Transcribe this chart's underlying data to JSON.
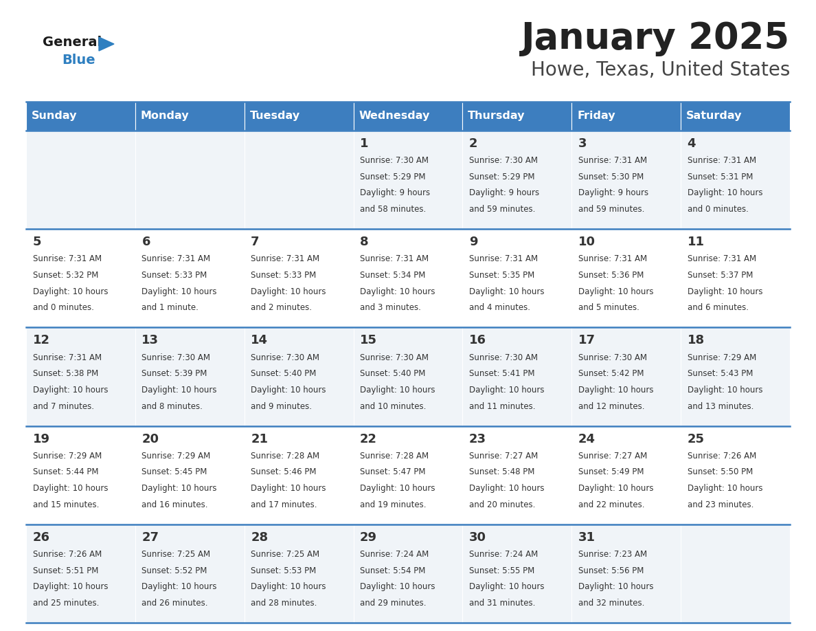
{
  "title": "January 2025",
  "subtitle": "Howe, Texas, United States",
  "header_color": "#3d7ebf",
  "header_text_color": "#ffffff",
  "cell_bg_color": "#f0f4f8",
  "cell_alt_bg_color": "#ffffff",
  "border_color": "#3d7ebf",
  "day_headers": [
    "Sunday",
    "Monday",
    "Tuesday",
    "Wednesday",
    "Thursday",
    "Friday",
    "Saturday"
  ],
  "title_color": "#222222",
  "subtitle_color": "#444444",
  "day_number_color": "#333333",
  "cell_text_color": "#333333",
  "logo_general_color": "#1a1a1a",
  "logo_blue_color": "#2e7fc0",
  "weeks": [
    [
      {
        "day": "",
        "sunrise": "",
        "sunset": "",
        "daylight_hours": "",
        "daylight_mins": ""
      },
      {
        "day": "",
        "sunrise": "",
        "sunset": "",
        "daylight_hours": "",
        "daylight_mins": ""
      },
      {
        "day": "",
        "sunrise": "",
        "sunset": "",
        "daylight_hours": "",
        "daylight_mins": ""
      },
      {
        "day": "1",
        "sunrise": "7:30 AM",
        "sunset": "5:29 PM",
        "daylight_hours": "9",
        "daylight_mins": "58 minutes."
      },
      {
        "day": "2",
        "sunrise": "7:30 AM",
        "sunset": "5:29 PM",
        "daylight_hours": "9",
        "daylight_mins": "59 minutes."
      },
      {
        "day": "3",
        "sunrise": "7:31 AM",
        "sunset": "5:30 PM",
        "daylight_hours": "9",
        "daylight_mins": "59 minutes."
      },
      {
        "day": "4",
        "sunrise": "7:31 AM",
        "sunset": "5:31 PM",
        "daylight_hours": "10",
        "daylight_mins": "0 minutes."
      }
    ],
    [
      {
        "day": "5",
        "sunrise": "7:31 AM",
        "sunset": "5:32 PM",
        "daylight_hours": "10",
        "daylight_mins": "0 minutes."
      },
      {
        "day": "6",
        "sunrise": "7:31 AM",
        "sunset": "5:33 PM",
        "daylight_hours": "10",
        "daylight_mins": "1 minute."
      },
      {
        "day": "7",
        "sunrise": "7:31 AM",
        "sunset": "5:33 PM",
        "daylight_hours": "10",
        "daylight_mins": "2 minutes."
      },
      {
        "day": "8",
        "sunrise": "7:31 AM",
        "sunset": "5:34 PM",
        "daylight_hours": "10",
        "daylight_mins": "3 minutes."
      },
      {
        "day": "9",
        "sunrise": "7:31 AM",
        "sunset": "5:35 PM",
        "daylight_hours": "10",
        "daylight_mins": "4 minutes."
      },
      {
        "day": "10",
        "sunrise": "7:31 AM",
        "sunset": "5:36 PM",
        "daylight_hours": "10",
        "daylight_mins": "5 minutes."
      },
      {
        "day": "11",
        "sunrise": "7:31 AM",
        "sunset": "5:37 PM",
        "daylight_hours": "10",
        "daylight_mins": "6 minutes."
      }
    ],
    [
      {
        "day": "12",
        "sunrise": "7:31 AM",
        "sunset": "5:38 PM",
        "daylight_hours": "10",
        "daylight_mins": "7 minutes."
      },
      {
        "day": "13",
        "sunrise": "7:30 AM",
        "sunset": "5:39 PM",
        "daylight_hours": "10",
        "daylight_mins": "8 minutes."
      },
      {
        "day": "14",
        "sunrise": "7:30 AM",
        "sunset": "5:40 PM",
        "daylight_hours": "10",
        "daylight_mins": "9 minutes."
      },
      {
        "day": "15",
        "sunrise": "7:30 AM",
        "sunset": "5:40 PM",
        "daylight_hours": "10",
        "daylight_mins": "10 minutes."
      },
      {
        "day": "16",
        "sunrise": "7:30 AM",
        "sunset": "5:41 PM",
        "daylight_hours": "10",
        "daylight_mins": "11 minutes."
      },
      {
        "day": "17",
        "sunrise": "7:30 AM",
        "sunset": "5:42 PM",
        "daylight_hours": "10",
        "daylight_mins": "12 minutes."
      },
      {
        "day": "18",
        "sunrise": "7:29 AM",
        "sunset": "5:43 PM",
        "daylight_hours": "10",
        "daylight_mins": "13 minutes."
      }
    ],
    [
      {
        "day": "19",
        "sunrise": "7:29 AM",
        "sunset": "5:44 PM",
        "daylight_hours": "10",
        "daylight_mins": "15 minutes."
      },
      {
        "day": "20",
        "sunrise": "7:29 AM",
        "sunset": "5:45 PM",
        "daylight_hours": "10",
        "daylight_mins": "16 minutes."
      },
      {
        "day": "21",
        "sunrise": "7:28 AM",
        "sunset": "5:46 PM",
        "daylight_hours": "10",
        "daylight_mins": "17 minutes."
      },
      {
        "day": "22",
        "sunrise": "7:28 AM",
        "sunset": "5:47 PM",
        "daylight_hours": "10",
        "daylight_mins": "19 minutes."
      },
      {
        "day": "23",
        "sunrise": "7:27 AM",
        "sunset": "5:48 PM",
        "daylight_hours": "10",
        "daylight_mins": "20 minutes."
      },
      {
        "day": "24",
        "sunrise": "7:27 AM",
        "sunset": "5:49 PM",
        "daylight_hours": "10",
        "daylight_mins": "22 minutes."
      },
      {
        "day": "25",
        "sunrise": "7:26 AM",
        "sunset": "5:50 PM",
        "daylight_hours": "10",
        "daylight_mins": "23 minutes."
      }
    ],
    [
      {
        "day": "26",
        "sunrise": "7:26 AM",
        "sunset": "5:51 PM",
        "daylight_hours": "10",
        "daylight_mins": "25 minutes."
      },
      {
        "day": "27",
        "sunrise": "7:25 AM",
        "sunset": "5:52 PM",
        "daylight_hours": "10",
        "daylight_mins": "26 minutes."
      },
      {
        "day": "28",
        "sunrise": "7:25 AM",
        "sunset": "5:53 PM",
        "daylight_hours": "10",
        "daylight_mins": "28 minutes."
      },
      {
        "day": "29",
        "sunrise": "7:24 AM",
        "sunset": "5:54 PM",
        "daylight_hours": "10",
        "daylight_mins": "29 minutes."
      },
      {
        "day": "30",
        "sunrise": "7:24 AM",
        "sunset": "5:55 PM",
        "daylight_hours": "10",
        "daylight_mins": "31 minutes."
      },
      {
        "day": "31",
        "sunrise": "7:23 AM",
        "sunset": "5:56 PM",
        "daylight_hours": "10",
        "daylight_mins": "32 minutes."
      },
      {
        "day": "",
        "sunrise": "",
        "sunset": "",
        "daylight_hours": "",
        "daylight_mins": ""
      }
    ]
  ]
}
